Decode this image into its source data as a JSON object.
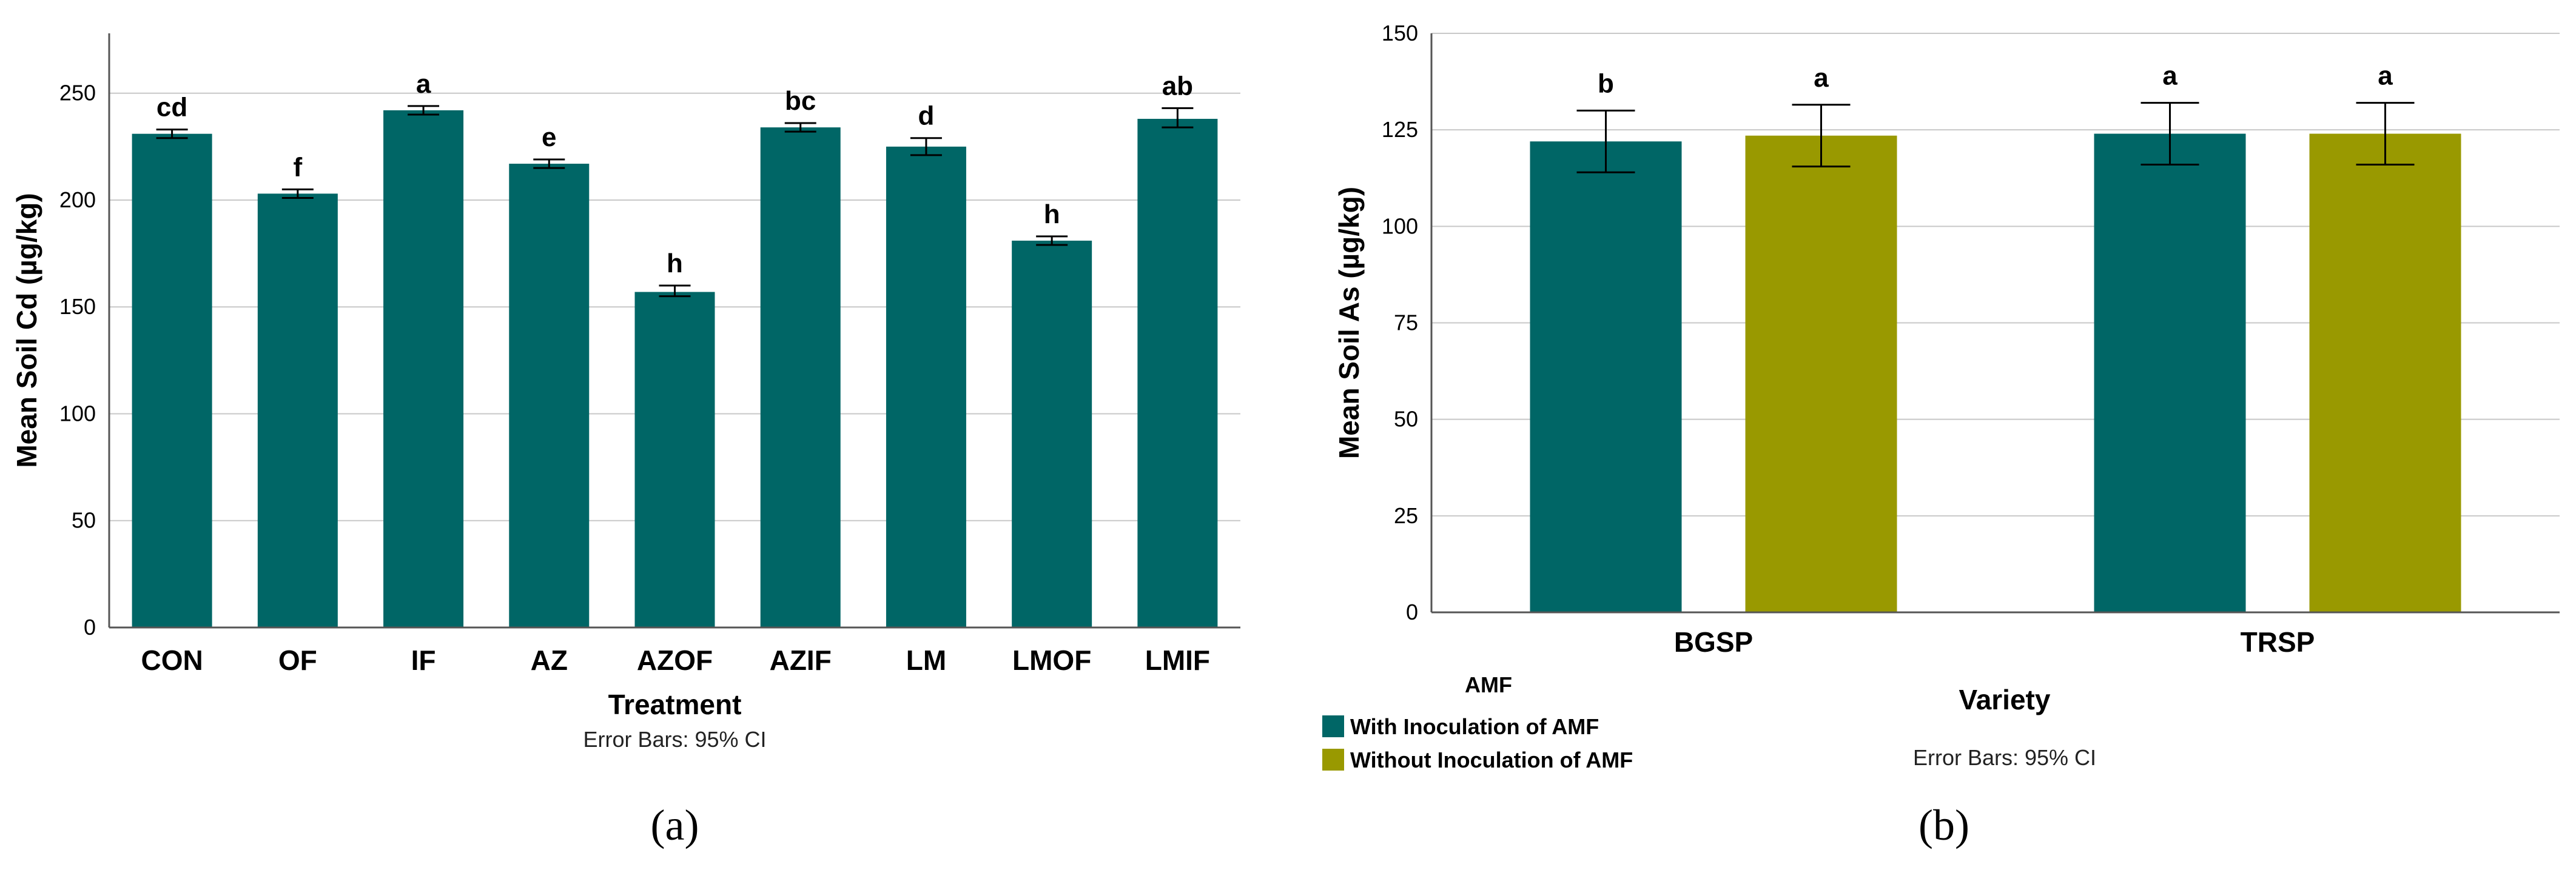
{
  "chart_data": [
    {
      "type": "bar",
      "panel_label": "(a)",
      "categories": [
        "CON",
        "OF",
        "IF",
        "AZ",
        "AZOF",
        "AZIF",
        "LM",
        "LMOF",
        "LMIF"
      ],
      "values": [
        231,
        203,
        242,
        217,
        157,
        234,
        225,
        181,
        238
      ],
      "ci_low": [
        229,
        201,
        240,
        215,
        155,
        232,
        221,
        179,
        234
      ],
      "ci_high": [
        233,
        205,
        244,
        219,
        160,
        236,
        229,
        183,
        243
      ],
      "significance": [
        "cd",
        "f",
        "a",
        "e",
        "h",
        "bc",
        "d",
        "h",
        "ab"
      ],
      "xlabel": "Treatment",
      "ylabel": "Mean Soil Cd (µg/kg)",
      "yticks": [
        0,
        50,
        100,
        150,
        200,
        250
      ],
      "ylim": [
        0,
        278
      ],
      "grid": true,
      "note": "Error Bars: 95% CI",
      "color": "#006666"
    },
    {
      "type": "bar",
      "panel_label": "(b)",
      "categories": [
        "BGSP",
        "TRSP"
      ],
      "series": [
        {
          "name": "With Inoculation of AMF",
          "color": "#006666",
          "values": [
            122,
            124
          ],
          "ci_low": [
            114,
            116
          ],
          "ci_high": [
            130,
            132
          ],
          "significance": [
            "b",
            "a"
          ]
        },
        {
          "name": "Without Inoculation of AMF",
          "color": "#999900",
          "values": [
            123.5,
            124
          ],
          "ci_low": [
            115.5,
            116
          ],
          "ci_high": [
            131.5,
            132
          ],
          "significance": [
            "a",
            "a"
          ]
        }
      ],
      "legend_title": "AMF",
      "xlabel": "Variety",
      "ylabel": "Mean Soil As (µg/kg)",
      "yticks": [
        0,
        25,
        50,
        75,
        100,
        125,
        150
      ],
      "ylim": [
        0,
        150
      ],
      "grid": true,
      "note": "Error Bars: 95% CI",
      "legend_position": "bottom-left"
    }
  ]
}
